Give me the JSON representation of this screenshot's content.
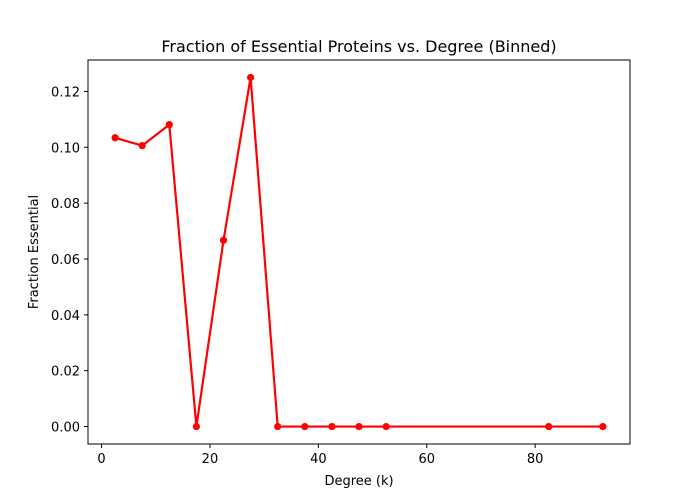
{
  "chart_data": {
    "type": "line",
    "title": "Fraction of Essential Proteins vs. Degree (Binned)",
    "xlabel": "Degree (k)",
    "ylabel": "Fraction Essential",
    "xlim": [
      -2.5,
      97.5
    ],
    "ylim": [
      -0.00625,
      0.13125
    ],
    "xticks": [
      0,
      20,
      40,
      60,
      80
    ],
    "xtick_labels": [
      "0",
      "20",
      "40",
      "60",
      "80"
    ],
    "yticks": [
      0.0,
      0.02,
      0.04,
      0.06,
      0.08,
      0.1,
      0.12
    ],
    "ytick_labels": [
      "0.00",
      "0.02",
      "0.04",
      "0.06",
      "0.08",
      "0.10",
      "0.12"
    ],
    "grid": false,
    "series": [
      {
        "color": "#ff0000",
        "marker": "circle",
        "x": [
          2.5,
          7.5,
          12.5,
          17.5,
          22.5,
          27.5,
          32.5,
          37.5,
          42.5,
          47.5,
          52.5,
          82.5,
          92.5
        ],
        "y": [
          0.1034,
          0.1006,
          0.1081,
          0.0,
          0.0667,
          0.125,
          0.0,
          0.0,
          0.0,
          0.0,
          0.0,
          0.0,
          0.0
        ]
      }
    ]
  }
}
